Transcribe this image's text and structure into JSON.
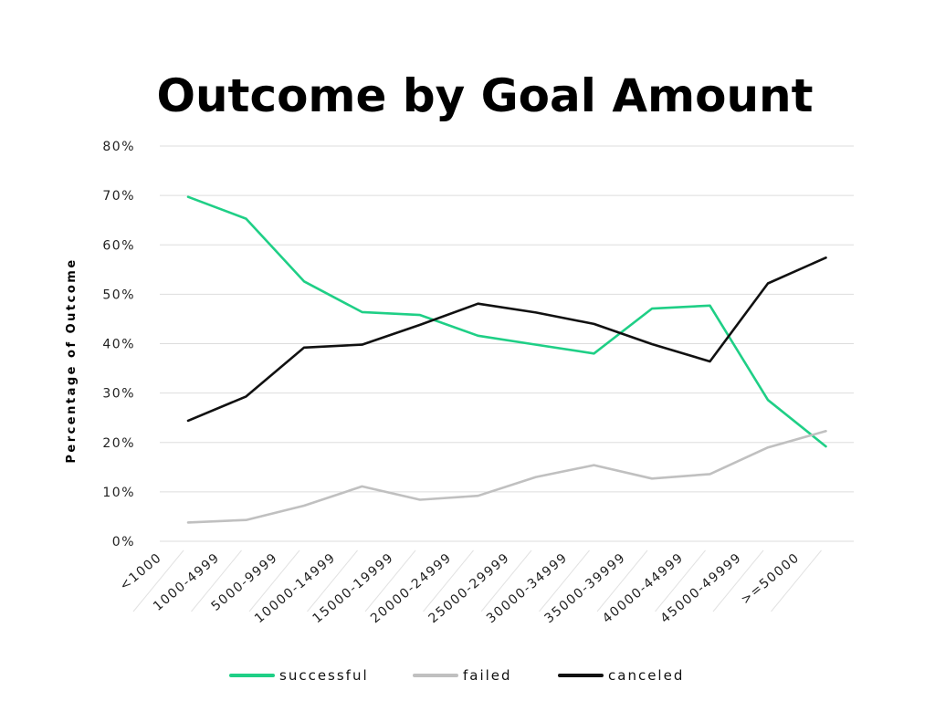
{
  "chart_data": {
    "type": "line",
    "title": "Outcome by Goal Amount",
    "xlabel": "",
    "ylabel": "Percentage of Outcome",
    "ylim": [
      0,
      80
    ],
    "yticks": [
      "0%",
      "10%",
      "20%",
      "30%",
      "40%",
      "50%",
      "60%",
      "70%",
      "80%"
    ],
    "categories": [
      "<1000",
      "1000-4999",
      "5000-9999",
      "10000-14999",
      "15000-19999",
      "20000-24999",
      "25000-29999",
      "30000-34999",
      "35000-39999",
      "40000-44999",
      "45000-49999",
      ">=50000"
    ],
    "grid": true,
    "legend_position": "bottom",
    "series": [
      {
        "name": "successful",
        "color": "#1fcf86",
        "values": [
          69.7,
          65.3,
          52.6,
          46.4,
          45.8,
          41.6,
          39.8,
          38.0,
          47.1,
          47.7,
          28.6,
          19.2
        ]
      },
      {
        "name": "failed",
        "color": "#c0c0c0",
        "values": [
          3.8,
          4.3,
          7.2,
          11.1,
          8.4,
          9.2,
          13.0,
          15.4,
          12.7,
          13.6,
          19.0,
          22.3
        ]
      },
      {
        "name": "canceled",
        "color": "#111111",
        "values": [
          24.4,
          29.3,
          39.2,
          39.8,
          43.8,
          48.1,
          46.3,
          44.0,
          39.9,
          36.4,
          52.2,
          57.4
        ]
      }
    ]
  }
}
